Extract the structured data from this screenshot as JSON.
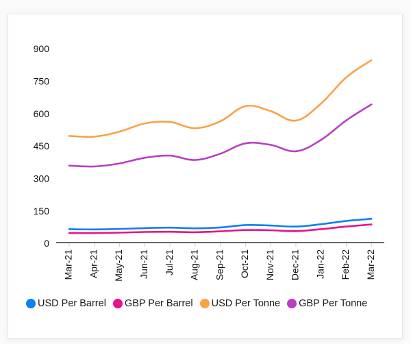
{
  "chart_data": {
    "type": "line",
    "title": "",
    "xlabel": "",
    "ylabel": "",
    "categories": [
      "Mar-21",
      "Apr-21",
      "May-21",
      "Jun-21",
      "Jul-21",
      "Aug-21",
      "Sep-21",
      "Oct-21",
      "Nov-21",
      "Dec-21",
      "Jan-22",
      "Feb-22",
      "Mar-22"
    ],
    "series": [
      {
        "name": "USD Per Barrel",
        "color": "#0f80ef",
        "values": [
          62,
          61,
          63,
          67,
          69,
          66,
          70,
          81,
          79,
          74,
          85,
          100,
          110
        ]
      },
      {
        "name": "GBP Per Barrel",
        "color": "#ec0f8c",
        "values": [
          44,
          44,
          46,
          49,
          50,
          48,
          52,
          58,
          57,
          53,
          62,
          74,
          84
        ]
      },
      {
        "name": "USD Per Tonne",
        "color": "#f9a246",
        "values": [
          493,
          490,
          513,
          551,
          558,
          529,
          561,
          631,
          608,
          564,
          643,
          764,
          844
        ]
      },
      {
        "name": "GBP Per Tonne",
        "color": "#b93fc2",
        "values": [
          356,
          352,
          366,
          392,
          402,
          382,
          411,
          459,
          452,
          422,
          475,
          565,
          639
        ]
      }
    ],
    "yticks": [
      0,
      150,
      300,
      450,
      600,
      750,
      900
    ],
    "ylim": [
      0,
      900
    ],
    "grid": false,
    "legend_position": "bottom"
  }
}
